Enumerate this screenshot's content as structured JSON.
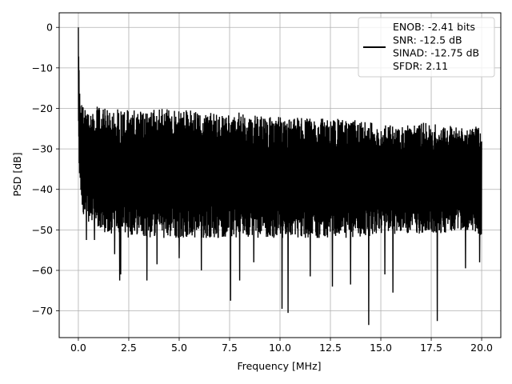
{
  "chart_data": {
    "type": "line",
    "title": "",
    "xlabel": "Frequency [MHz]",
    "ylabel": "PSD [dB]",
    "xlim": [
      -0.95,
      20.95
    ],
    "ylim": [
      -76.6,
      3.6
    ],
    "x_ticks": [
      0.0,
      2.5,
      5.0,
      7.5,
      10.0,
      12.5,
      15.0,
      17.5,
      20.0
    ],
    "x_tick_labels": [
      "0.0",
      "2.5",
      "5.0",
      "7.5",
      "10.0",
      "12.5",
      "15.0",
      "17.5",
      "20.0"
    ],
    "y_ticks": [
      0,
      -10,
      -20,
      -30,
      -40,
      -50,
      -60,
      -70
    ],
    "y_tick_labels": [
      "0",
      "−10",
      "−20",
      "−30",
      "−40",
      "−50",
      "−60",
      "−70"
    ],
    "grid": true,
    "legend_position": "top-right",
    "series": [
      {
        "name": "ENOB: -2.41 bits\nSNR: -12.5 dB\nSINAD: -12.75 dB\nSFDR: 2.11",
        "color": "#000000",
        "envelope": {
          "x": [
            0.0,
            0.05,
            0.1,
            0.2,
            0.3,
            0.5,
            0.8,
            1.0,
            1.5,
            2.0,
            2.5,
            3.0,
            3.5,
            4.0,
            5.0,
            6.0,
            7.0,
            8.0,
            9.0,
            10.0,
            11.0,
            12.0,
            13.0,
            14.0,
            15.0,
            16.0,
            17.0,
            18.0,
            19.0,
            20.0
          ],
          "upper": [
            0,
            -14,
            -17,
            -19,
            -20,
            -20.5,
            -20.5,
            -19,
            -20.5,
            -19.5,
            -20.5,
            -20,
            -20.5,
            -19.5,
            -20.5,
            -20,
            -21.5,
            -21,
            -22,
            -22,
            -22,
            -22.5,
            -22.5,
            -23,
            -24,
            -24,
            -23.5,
            -24,
            -24.5,
            -24.5
          ],
          "lower": [
            -30,
            -37,
            -40,
            -45,
            -47,
            -48,
            -49,
            -50,
            -51,
            -52,
            -52,
            -51,
            -52,
            -52,
            -52,
            -52,
            -52,
            -52,
            -52,
            -52,
            -52,
            -52,
            -52,
            -52,
            -51,
            -51,
            -51,
            -51,
            -50,
            -52
          ]
        },
        "spikes": [
          {
            "x": 0.4,
            "y": -52.5
          },
          {
            "x": 0.8,
            "y": -52.5
          },
          {
            "x": 1.8,
            "y": -56
          },
          {
            "x": 2.05,
            "y": -62.5
          },
          {
            "x": 2.1,
            "y": -61
          },
          {
            "x": 3.4,
            "y": -62.5
          },
          {
            "x": 3.9,
            "y": -58.5
          },
          {
            "x": 5.0,
            "y": -57
          },
          {
            "x": 6.1,
            "y": -60
          },
          {
            "x": 7.55,
            "y": -67.5
          },
          {
            "x": 8.0,
            "y": -62.5
          },
          {
            "x": 8.7,
            "y": -58
          },
          {
            "x": 10.1,
            "y": -69.5
          },
          {
            "x": 10.4,
            "y": -70.5
          },
          {
            "x": 11.5,
            "y": -61.5
          },
          {
            "x": 12.6,
            "y": -64
          },
          {
            "x": 13.5,
            "y": -63.5
          },
          {
            "x": 14.4,
            "y": -73.5
          },
          {
            "x": 15.2,
            "y": -61
          },
          {
            "x": 15.6,
            "y": -65.5
          },
          {
            "x": 17.8,
            "y": -72.5
          },
          {
            "x": 19.2,
            "y": -59.5
          },
          {
            "x": 19.9,
            "y": -58
          }
        ]
      }
    ]
  }
}
